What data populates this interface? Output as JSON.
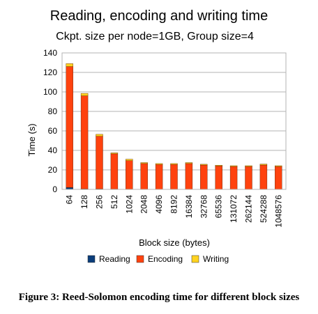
{
  "caption": "Figure 3: Reed-Solomon encoding time for different block sizes",
  "chart_data": {
    "type": "bar",
    "stacked": true,
    "title": "Reading, encoding and writing time",
    "subtitle": "Ckpt. size per node=1GB, Group size=4",
    "xlabel": "Block size (bytes)",
    "ylabel": "Time (s)",
    "ylim": [
      0,
      140
    ],
    "yticks": [
      0,
      20,
      40,
      60,
      80,
      100,
      120,
      140
    ],
    "grid": true,
    "legend_position": "bottom",
    "categories": [
      "64",
      "128",
      "256",
      "512",
      "1024",
      "2048",
      "4096",
      "8192",
      "16384",
      "32768",
      "65536",
      "131072",
      "262144",
      "524288",
      "1048576"
    ],
    "series": [
      {
        "name": "Reading",
        "color": "#0a3d7a",
        "values": [
          2,
          0.5,
          0.5,
          0.3,
          0.3,
          0.2,
          0.2,
          0.2,
          0.2,
          0.2,
          0.2,
          0.2,
          0.2,
          0.2,
          0.2
        ]
      },
      {
        "name": "Encoding",
        "color": "#ff420e",
        "values": [
          124,
          95.5,
          54,
          36.2,
          29.2,
          26.3,
          25.3,
          25.3,
          26.3,
          24.8,
          23.8,
          23.3,
          23.3,
          24.8,
          23.3
        ]
      },
      {
        "name": "Writing",
        "color": "#ffd320",
        "values": [
          3,
          2.5,
          2,
          1,
          1.5,
          1,
          1,
          1,
          1,
          0.8,
          0.8,
          0.8,
          0.8,
          1,
          0.8
        ]
      }
    ]
  }
}
